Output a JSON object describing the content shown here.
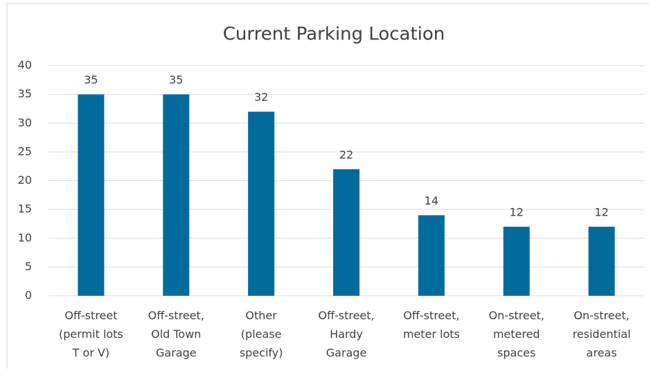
{
  "chart_data": {
    "type": "bar",
    "title": "Current Parking Location",
    "categories": [
      "Off-street\n(permit lots\nT or V)",
      "Off-street,\nOld Town\nGarage",
      "Other\n(please\nspecify)",
      "Off-street,\nHardy\nGarage",
      "Off-street,\nmeter lots",
      "On-street,\nmetered\nspaces",
      "On-street,\nresidential\nareas"
    ],
    "values": [
      35,
      35,
      32,
      22,
      14,
      12,
      12
    ],
    "color": "#006b9c",
    "ylim": [
      0,
      40
    ],
    "yticks": [
      0,
      5,
      10,
      15,
      20,
      25,
      30,
      35,
      40
    ],
    "grid": true
  }
}
